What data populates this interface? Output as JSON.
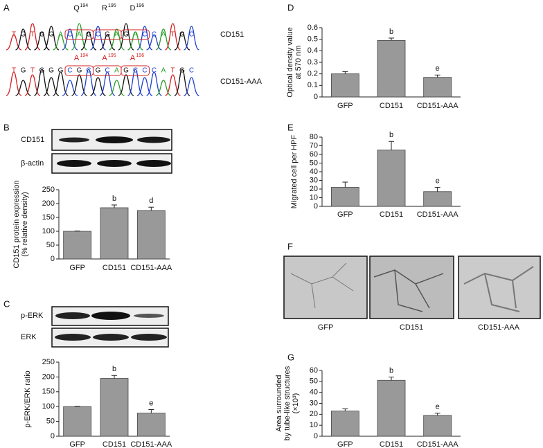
{
  "panel_labels": [
    "A",
    "B",
    "C",
    "D",
    "E",
    "F",
    "G"
  ],
  "sequences": [
    {
      "name": "CD151",
      "bases": [
        "T",
        "G",
        "T",
        "G",
        "G",
        "A",
        "C",
        "A",
        "G",
        "C",
        "G",
        "A",
        "G",
        "A",
        "C",
        "C",
        "A",
        "T",
        "G",
        "C"
      ],
      "residues": [
        {
          "label": "Q",
          "sup": "194"
        },
        {
          "label": "R",
          "sup": "195"
        },
        {
          "label": "D",
          "sup": "196"
        }
      ]
    },
    {
      "name": "CD151-AAA",
      "bases": [
        "T",
        "G",
        "T",
        "G",
        "G",
        "G",
        "C",
        "G",
        "C",
        "G",
        "C",
        "A",
        "G",
        "C",
        "C",
        "C",
        "A",
        "T",
        "G",
        "C"
      ],
      "residues": [
        {
          "label": "A",
          "sup": "194"
        },
        {
          "label": "A",
          "sup": "195"
        },
        {
          "label": "A",
          "sup": "196"
        }
      ]
    }
  ],
  "blots": [
    {
      "labels": [
        "CD151",
        "β-actin"
      ]
    },
    {
      "labels": [
        "p-ERK",
        "ERK"
      ]
    }
  ],
  "images": {
    "labels": [
      "GFP",
      "CD151",
      "CD151-AAA"
    ]
  },
  "chart_data": [
    {
      "type": "bar",
      "ylabel": [
        "CD151 protein expression",
        "(% relative density)"
      ],
      "categories": [
        "GFP",
        "CD151",
        "CD151-AAA"
      ],
      "values": [
        100,
        185,
        175
      ],
      "errors": [
        1,
        10,
        12
      ],
      "sig_labels": [
        null,
        "b",
        "d"
      ],
      "color": "#999999",
      "ylim": [
        0,
        250
      ],
      "yticks": [
        0,
        50,
        100,
        150,
        200,
        250
      ]
    },
    {
      "type": "bar",
      "ylabel": [
        "p-ERK/ERK ratio"
      ],
      "categories": [
        "GFP",
        "CD151",
        "CD151-AAA"
      ],
      "values": [
        100,
        195,
        78
      ],
      "errors": [
        1,
        10,
        12
      ],
      "sig_labels": [
        null,
        "b",
        "e"
      ],
      "color": "#999999",
      "ylim": [
        0,
        250
      ],
      "yticks": [
        0,
        50,
        100,
        150,
        200,
        250
      ]
    },
    {
      "type": "bar",
      "ylabel": [
        "Optical density value",
        "at 570 nm"
      ],
      "categories": [
        "GFP",
        "CD151",
        "CD151-AAA"
      ],
      "values": [
        0.2,
        0.49,
        0.17
      ],
      "errors": [
        0.02,
        0.02,
        0.02
      ],
      "sig_labels": [
        null,
        "b",
        "e"
      ],
      "color": "#999999",
      "ylim": [
        0,
        0.6
      ],
      "yticks": [
        0,
        0.1,
        0.2,
        0.3,
        0.4,
        0.5,
        0.6
      ]
    },
    {
      "type": "bar",
      "ylabel": [
        "Migrated cell per HPF"
      ],
      "categories": [
        "GFP",
        "CD151",
        "CD151-AAA"
      ],
      "values": [
        22,
        65,
        17
      ],
      "errors": [
        6,
        10,
        5
      ],
      "sig_labels": [
        null,
        "b",
        "e"
      ],
      "color": "#999999",
      "ylim": [
        0,
        80
      ],
      "yticks": [
        0,
        10,
        20,
        30,
        40,
        50,
        60,
        70,
        80
      ]
    },
    {
      "type": "bar",
      "ylabel": [
        "Area surrounded",
        "by tube-like structures",
        "(×10³)"
      ],
      "categories": [
        "GFP",
        "CD151",
        "CD151-AAA"
      ],
      "values": [
        23,
        51,
        19
      ],
      "errors": [
        2,
        3,
        2
      ],
      "sig_labels": [
        null,
        "b",
        "e"
      ],
      "color": "#999999",
      "ylim": [
        0,
        60
      ],
      "yticks": [
        0,
        10,
        20,
        30,
        40,
        50,
        60
      ]
    }
  ]
}
